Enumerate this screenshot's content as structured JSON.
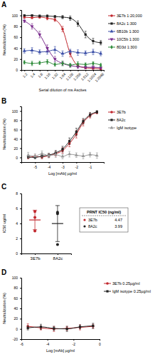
{
  "chart_data": [
    {
      "type": "line",
      "title": "A",
      "x_label": "Serial dilution of ms Ascites",
      "y_label": "Neutralization (%)",
      "categories": [
        "1:2",
        "1:4",
        "1:8",
        "1:16",
        "1:32",
        "1:64",
        "1:128",
        "1:256",
        "1:512",
        "1:1024",
        "1:2048"
      ],
      "ylim": [
        0,
        110
      ],
      "yticks": [
        0,
        20,
        40,
        60,
        80,
        100
      ],
      "legend": "right",
      "series": [
        {
          "name": "3E7b 1:20,000",
          "color": "#c1272d",
          "marker": "circle",
          "values": [
            97,
            96,
            97,
            95,
            92,
            75,
            30,
            8,
            4,
            3,
            2
          ],
          "errors": [
            2,
            2,
            2,
            3,
            3,
            5,
            6,
            3,
            2,
            2,
            2
          ]
        },
        {
          "name": "8A2c 1:300",
          "color": "#222222",
          "marker": "square",
          "values": [
            100,
            100,
            99,
            99,
            98,
            97,
            95,
            85,
            65,
            53,
            50
          ],
          "errors": [
            1,
            1,
            2,
            2,
            2,
            3,
            4,
            5,
            6,
            5,
            4
          ]
        },
        {
          "name": "6B10b 1:300",
          "color": "#3b4fa8",
          "marker": "triangle",
          "values": [
            35,
            36,
            33,
            34,
            37,
            30,
            34,
            32,
            31,
            33,
            30
          ],
          "errors": [
            4,
            5,
            4,
            5,
            6,
            5,
            4,
            5,
            4,
            5,
            4
          ]
        },
        {
          "name": "10C5b 1:300",
          "color": "#7b2d8e",
          "marker": "triangle-down",
          "values": [
            90,
            80,
            65,
            40,
            20,
            12,
            8,
            6,
            5,
            5,
            4
          ],
          "errors": [
            3,
            5,
            6,
            6,
            5,
            4,
            3,
            3,
            3,
            3,
            2
          ]
        },
        {
          "name": "8D3d 1:300",
          "color": "#2e8b3a",
          "marker": "diamond",
          "values": [
            14,
            12,
            13,
            15,
            10,
            12,
            9,
            11,
            10,
            12,
            9
          ],
          "errors": [
            3,
            4,
            3,
            4,
            3,
            4,
            3,
            4,
            3,
            3,
            3
          ]
        }
      ]
    },
    {
      "type": "line",
      "title": "B",
      "x_label": "Log [mAb] µg/ml",
      "y_label": "Neutralization (%)",
      "x": [
        -5.5,
        -5,
        -4.5,
        -4,
        -3.5,
        -3,
        -2.5,
        -2,
        -1.5,
        -1,
        -0.5
      ],
      "xlim": [
        -6,
        0
      ],
      "xticks": [
        -5,
        -4,
        -3,
        -2,
        -1
      ],
      "ylim": [
        -10,
        110
      ],
      "yticks": [
        0,
        20,
        40,
        60,
        80,
        100
      ],
      "legend": "right",
      "series": [
        {
          "name": "3E7b",
          "color": "#c1272d",
          "marker": "circle",
          "values": [
            0,
            2,
            1,
            4,
            8,
            15,
            30,
            50,
            75,
            90,
            97
          ],
          "errors": [
            3,
            3,
            4,
            4,
            5,
            6,
            7,
            8,
            7,
            5,
            3
          ]
        },
        {
          "name": "8A2c",
          "color": "#222222",
          "marker": "square",
          "values": [
            1,
            0,
            3,
            5,
            10,
            18,
            35,
            55,
            78,
            92,
            98
          ],
          "errors": [
            3,
            3,
            4,
            4,
            5,
            6,
            7,
            8,
            6,
            5,
            3
          ]
        },
        {
          "name": "IgM isotype",
          "color": "#999999",
          "marker": "triangle",
          "values": [
            5,
            3,
            8,
            4,
            6,
            2,
            7,
            5,
            3,
            6,
            4
          ],
          "errors": [
            6,
            5,
            6,
            5,
            6,
            5,
            6,
            5,
            6,
            5,
            6
          ]
        }
      ]
    },
    {
      "type": "scatter",
      "title": "C",
      "y_label": "IC50 ug/ml",
      "categories": [
        "3E7b",
        "8A2c"
      ],
      "colors": [
        "#c1272d",
        "#222222"
      ],
      "values": [
        [
          5.6,
          4.8,
          3.0
        ],
        [
          5.5,
          5.3,
          1.2
        ]
      ],
      "means": [
        4.47,
        3.99
      ],
      "sd": [
        1.3,
        2.4
      ],
      "ylim": [
        0,
        8
      ],
      "yticks": [
        0,
        2,
        4,
        6,
        8
      ],
      "table": {
        "header": "PRNT IC50 (ng/ml)",
        "rows": [
          [
            "3E7b",
            4.47
          ],
          [
            "8A2c",
            3.99
          ]
        ]
      }
    },
    {
      "type": "line",
      "title": "D",
      "x_label": "Log [mAb] µg/ml",
      "y_label": "Neutralization (%)",
      "x": [
        -5.5,
        -4.5,
        -3.5,
        -2.5,
        -1.5,
        -0.5
      ],
      "xlim": [
        -6,
        0
      ],
      "xticks": [
        -6,
        -4,
        -2,
        0
      ],
      "ylim": [
        -20,
        100
      ],
      "yticks": [
        -20,
        0,
        20,
        40,
        60,
        80,
        100
      ],
      "legend": "right",
      "series": [
        {
          "name": "3E7b 0.25µg/ml",
          "color": "#c1272d",
          "marker": "circle",
          "values": [
            5,
            2,
            0,
            1,
            3,
            5
          ],
          "errors": [
            5,
            4,
            5,
            4,
            5,
            4
          ]
        },
        {
          "name": "IgM isotype 0.25µg/ml",
          "color": "#222222",
          "marker": "square",
          "values": [
            2,
            4,
            1,
            0,
            4,
            6
          ],
          "errors": [
            4,
            5,
            4,
            5,
            4,
            5
          ]
        }
      ]
    }
  ]
}
